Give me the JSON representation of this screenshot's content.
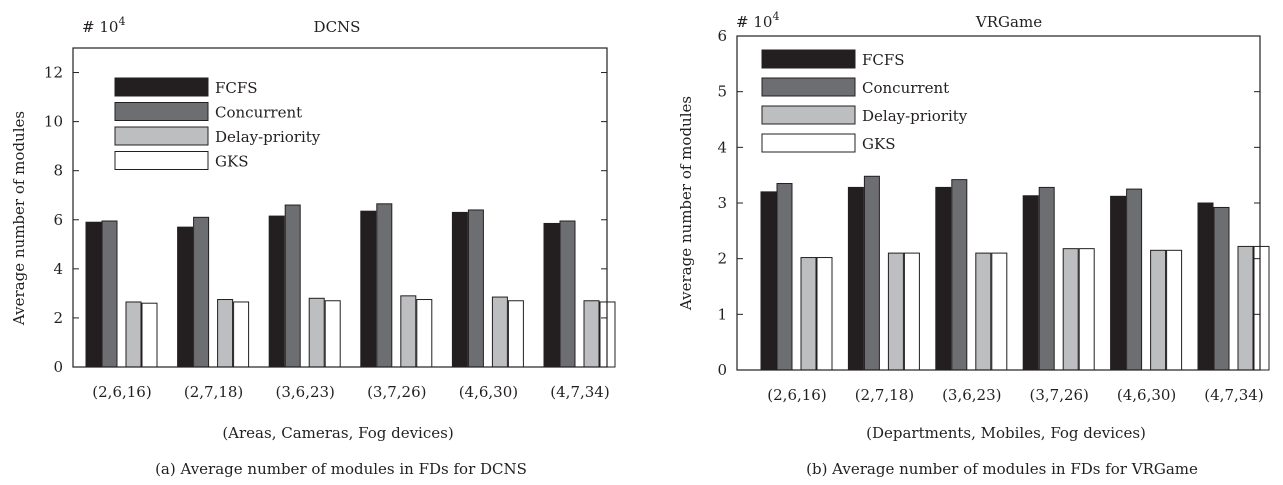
{
  "colors": {
    "FCFS": "#231f20",
    "Concurrent": "#6d6e71",
    "Delay-priority": "#bcbec0",
    "GKS": "#ffffff",
    "axis": "#231f20"
  },
  "chart_data": [
    {
      "type": "bar",
      "title": "DCNS",
      "exponent_label": "# 10",
      "exponent_power": "4",
      "caption": "(a) Average number of modules in FDs for DCNS",
      "xlabel": "(Areas, Cameras, Fog devices)",
      "ylabel": "Average number of modules",
      "ylim": [
        0,
        13
      ],
      "yticks": [
        0,
        2,
        4,
        6,
        8,
        10,
        12
      ],
      "grid": false,
      "legend_position": "top-left",
      "categories": [
        "(2,6,16)",
        "(2,7,18)",
        "(3,6,23)",
        "(3,7,26)",
        "(4,6,30)",
        "(4,7,34)"
      ],
      "series": [
        {
          "name": "FCFS",
          "values": [
            5.9,
            5.7,
            6.15,
            6.35,
            6.3,
            5.85
          ]
        },
        {
          "name": "Concurrent",
          "values": [
            5.95,
            6.1,
            6.6,
            6.65,
            6.4,
            5.95
          ]
        },
        {
          "name": "Delay-priority",
          "values": [
            2.65,
            2.75,
            2.8,
            2.9,
            2.85,
            2.7
          ]
        },
        {
          "name": "GKS",
          "values": [
            2.6,
            2.65,
            2.7,
            2.75,
            2.7,
            2.65
          ]
        }
      ]
    },
    {
      "type": "bar",
      "title": "VRGame",
      "exponent_label": "# 10",
      "exponent_power": "4",
      "caption": "(b) Average number of modules in FDs for VRGame",
      "xlabel": "(Departments, Mobiles, Fog devices)",
      "ylabel": "Average number of modules",
      "ylim": [
        0,
        6
      ],
      "yticks": [
        0,
        1,
        2,
        3,
        4,
        5,
        6
      ],
      "grid": false,
      "legend_position": "top-left",
      "categories": [
        "(2,6,16)",
        "(2,7,18)",
        "(3,6,23)",
        "(3,7,26)",
        "(4,6,30)",
        "(4,7,34)"
      ],
      "series": [
        {
          "name": "FCFS",
          "values": [
            3.2,
            3.28,
            3.28,
            3.13,
            3.12,
            3.0
          ]
        },
        {
          "name": "Concurrent",
          "values": [
            3.35,
            3.48,
            3.42,
            3.28,
            3.25,
            2.92
          ]
        },
        {
          "name": "Delay-priority",
          "values": [
            2.02,
            2.1,
            2.1,
            2.18,
            2.15,
            2.22
          ]
        },
        {
          "name": "GKS",
          "values": [
            2.02,
            2.1,
            2.1,
            2.18,
            2.15,
            2.22
          ]
        }
      ]
    }
  ]
}
